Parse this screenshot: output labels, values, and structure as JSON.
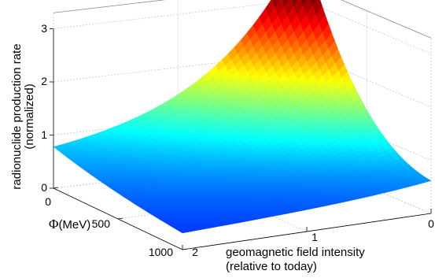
{
  "chart_data": {
    "type": "surface",
    "zlabel_line1": "radionuclide production rate",
    "zlabel_line2": "(normalized)",
    "ylabel_symbol": "Φ",
    "ylabel_unit": "(MeV)",
    "xlabel_line1": "geomagnetic field intensity",
    "xlabel_line2": "(relative to today)",
    "x_ticks": [
      "0",
      "1",
      "2"
    ],
    "y_ticks": [
      "0",
      "500",
      "1000"
    ],
    "z_ticks": [
      "0",
      "1",
      "2",
      "3"
    ],
    "xlim": [
      0,
      2
    ],
    "ylim": [
      0,
      1000
    ],
    "zlim": [
      0,
      3
    ],
    "grid": true,
    "colormap": "jet",
    "corner_values": [
      {
        "field": 0,
        "phi": 0,
        "rate": 3.4
      },
      {
        "field": 2,
        "phi": 0,
        "rate": 0.9
      },
      {
        "field": 2,
        "phi": 1000,
        "rate": 0.3
      },
      {
        "field": 0,
        "phi": 1000,
        "rate": 0.55
      }
    ]
  }
}
